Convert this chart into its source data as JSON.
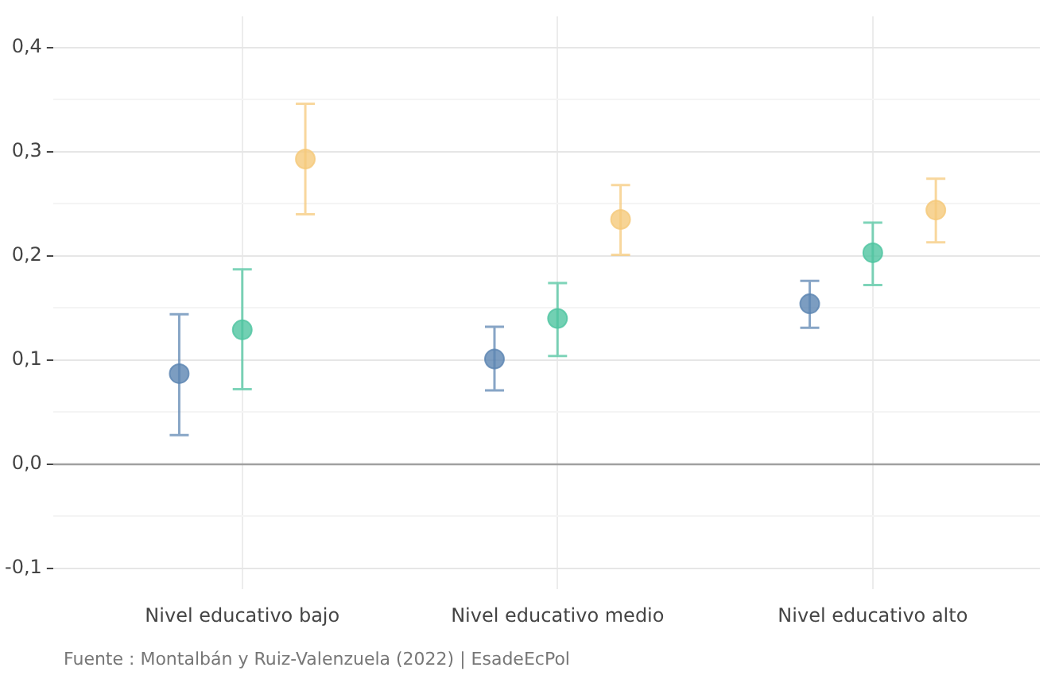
{
  "chart_data": {
    "type": "scatter",
    "categories": [
      "Nivel educativo bajo",
      "Nivel educativo medio",
      "Nivel educativo alto"
    ],
    "series": [
      {
        "color": "#5b84b1",
        "values": [
          0.087,
          0.101,
          0.154
        ],
        "errors": [
          [
            0.028,
            0.144
          ],
          [
            0.071,
            0.132
          ],
          [
            0.131,
            0.176
          ]
        ]
      },
      {
        "color": "#4fc4a0",
        "values": [
          0.129,
          0.14,
          0.203
        ],
        "errors": [
          [
            0.072,
            0.187
          ],
          [
            0.104,
            0.174
          ],
          [
            0.172,
            0.232
          ]
        ]
      },
      {
        "color": "#f5c97a",
        "values": [
          0.293,
          0.235,
          0.244
        ],
        "errors": [
          [
            0.24,
            0.346
          ],
          [
            0.201,
            0.268
          ],
          [
            0.213,
            0.274
          ]
        ]
      }
    ],
    "ylim": [
      -0.12,
      0.43
    ],
    "yticks": [
      {
        "value": -0.1,
        "label": "-0,1"
      },
      {
        "value": -0.05,
        "label": null
      },
      {
        "value": 0,
        "label": "0,0"
      },
      {
        "value": 0.05,
        "label": null
      },
      {
        "value": 0.1,
        "label": "0,1"
      },
      {
        "value": 0.15,
        "label": null
      },
      {
        "value": 0.2,
        "label": "0,2"
      },
      {
        "value": 0.25,
        "label": null
      },
      {
        "value": 0.3,
        "label": "0,3"
      },
      {
        "value": 0.35,
        "label": null
      },
      {
        "value": 0.4,
        "label": "0,4"
      }
    ],
    "ref_lines": [
      {
        "axis": "y",
        "value": 0,
        "color": "#a0a0a0"
      }
    ],
    "grid": true,
    "legend": false,
    "marker": "circle",
    "annotations": [
      "Fuente : Montalbán y Ruiz-Valenzuela (2022) | EsadeEcPol"
    ]
  }
}
